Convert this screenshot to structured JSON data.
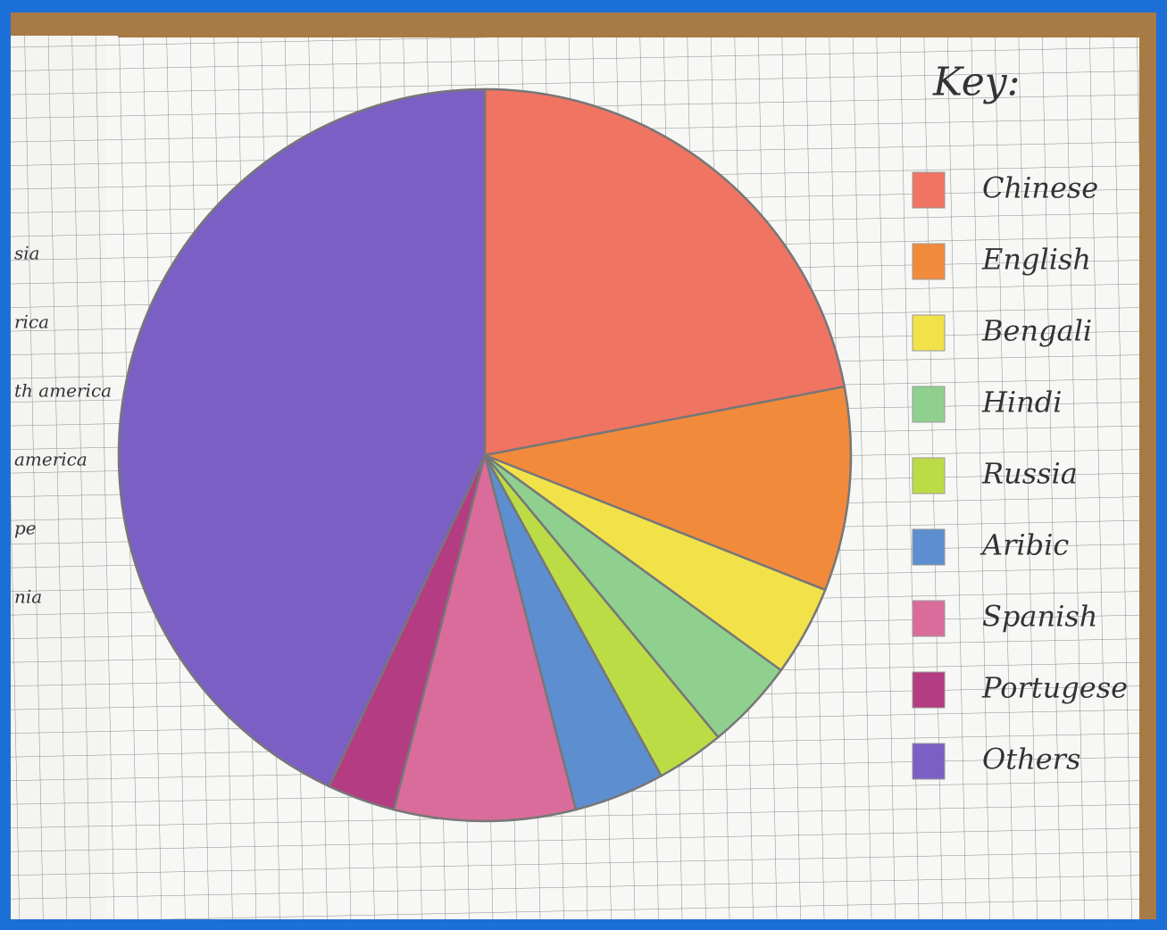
{
  "chart_data": {
    "type": "pie",
    "title": "Key:",
    "categories": [
      "Chinese",
      "English",
      "Bengali",
      "Hindi",
      "Russia",
      "Aribic",
      "Spanish",
      "Portugese",
      "Others"
    ],
    "values": [
      22,
      9,
      4,
      4,
      3,
      4,
      8,
      3,
      43
    ],
    "colors": [
      "#f07462",
      "#f28a3c",
      "#f2e24a",
      "#8fd08e",
      "#bcdc46",
      "#5d8fd0",
      "#d96c9a",
      "#b43c82",
      "#7b5fc4"
    ],
    "start_angle": 0,
    "direction": "clockwise"
  },
  "page_fragments": [
    "sia",
    "rica",
    "th america",
    "america",
    "pe",
    "nia"
  ]
}
